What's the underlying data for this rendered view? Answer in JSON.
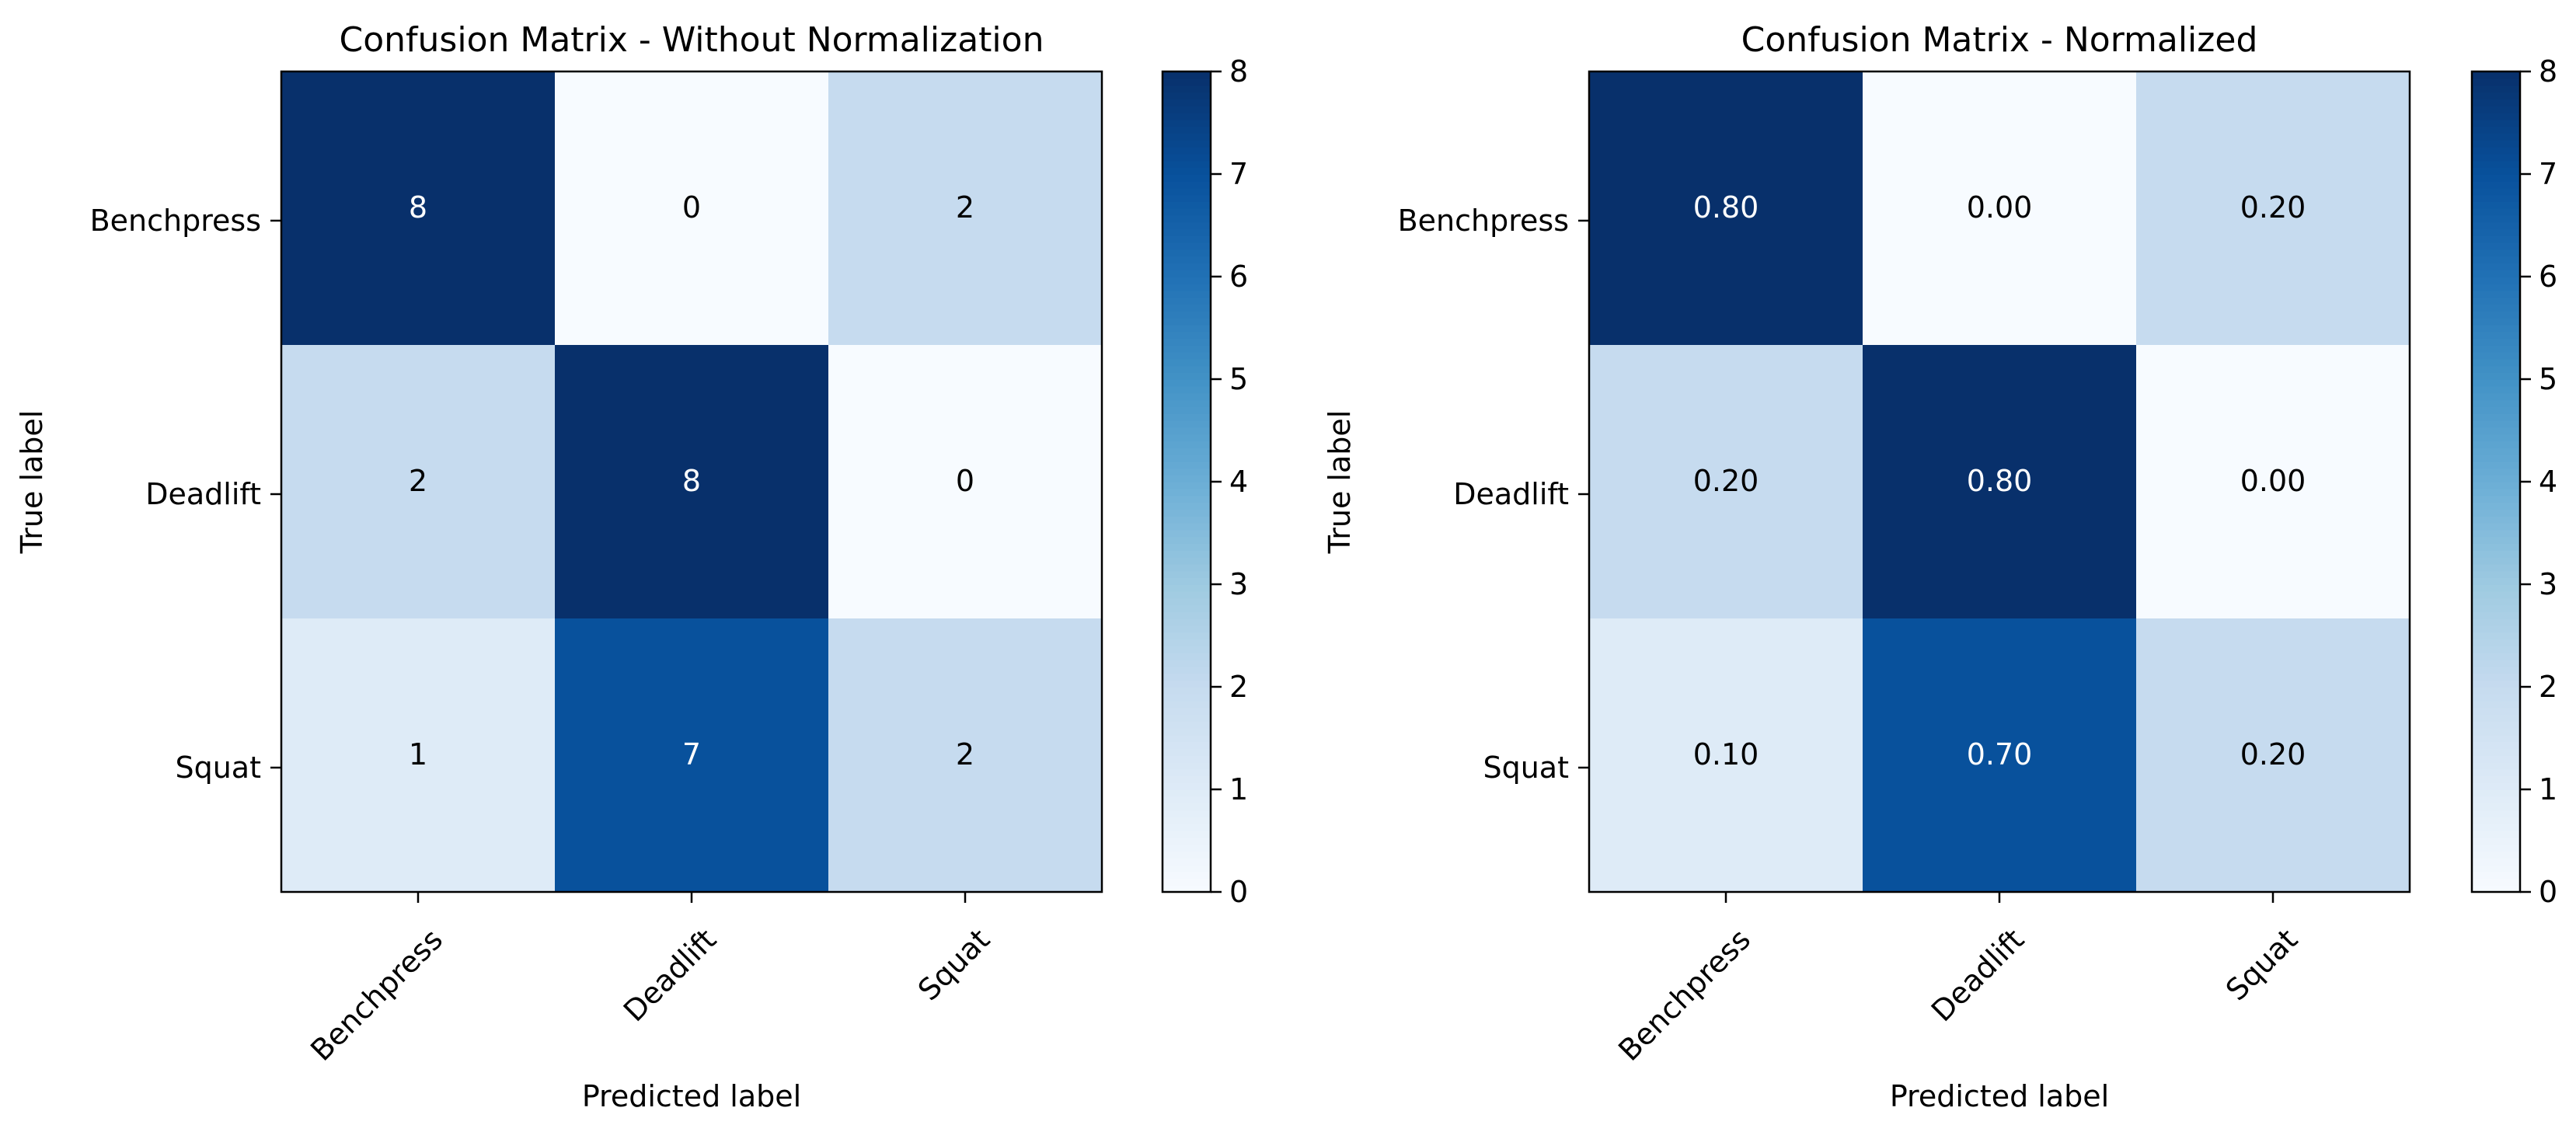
{
  "chart_data": [
    {
      "type": "heatmap",
      "title": "Confusion Matrix - Without Normalization",
      "xlabel": "Predicted label",
      "ylabel": "True label",
      "x_categories": [
        "Benchpress",
        "Deadlift",
        "Squat"
      ],
      "y_categories": [
        "Benchpress",
        "Deadlift",
        "Squat"
      ],
      "values": [
        [
          8,
          0,
          2
        ],
        [
          2,
          8,
          0
        ],
        [
          1,
          7,
          2
        ]
      ],
      "cell_labels": [
        [
          "8",
          "0",
          "2"
        ],
        [
          "2",
          "8",
          "0"
        ],
        [
          "1",
          "7",
          "2"
        ]
      ],
      "color_values": [
        [
          8,
          0,
          2
        ],
        [
          2,
          8,
          0
        ],
        [
          1,
          7,
          2
        ]
      ],
      "colormap": "Blues",
      "colorbar": {
        "min": 0,
        "max": 8,
        "ticks": [
          "0",
          "1",
          "2",
          "3",
          "4",
          "5",
          "6",
          "7",
          "8"
        ]
      }
    },
    {
      "type": "heatmap",
      "title": "Confusion Matrix - Normalized",
      "xlabel": "Predicted label",
      "ylabel": "True label",
      "x_categories": [
        "Benchpress",
        "Deadlift",
        "Squat"
      ],
      "y_categories": [
        "Benchpress",
        "Deadlift",
        "Squat"
      ],
      "values": [
        [
          0.8,
          0.0,
          0.2
        ],
        [
          0.2,
          0.8,
          0.0
        ],
        [
          0.1,
          0.7,
          0.2
        ]
      ],
      "cell_labels": [
        [
          "0.80",
          "0.00",
          "0.20"
        ],
        [
          "0.20",
          "0.80",
          "0.00"
        ],
        [
          "0.10",
          "0.70",
          "0.20"
        ]
      ],
      "color_values": [
        [
          8,
          0,
          2
        ],
        [
          2,
          8,
          0
        ],
        [
          1,
          7,
          2
        ]
      ],
      "colormap": "Blues",
      "colorbar": {
        "min": 0,
        "max": 8,
        "ticks": [
          "0",
          "1",
          "2",
          "3",
          "4",
          "5",
          "6",
          "7",
          "8"
        ]
      }
    }
  ],
  "colors": {
    "blues_low": "#f7fbff",
    "blues_high": "#08306b",
    "text_dark": "#000000",
    "text_light": "#ffffff",
    "axis": "#000000"
  }
}
